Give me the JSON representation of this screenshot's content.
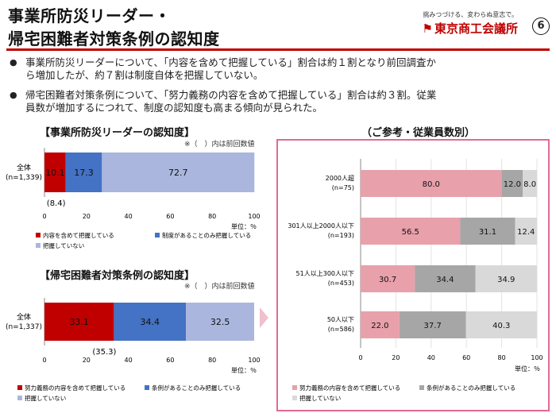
{
  "header": {
    "title_line1": "事業所防災リーダー・",
    "title_line2": "帰宅困難者対策条例の認知度",
    "slogan": "挑みつづける、変わらぬ意志で。",
    "logo_text": "東京商工会議所",
    "page_number": "⑥"
  },
  "bullets": [
    {
      "line1": "事業所防災リーダーについて、「内容を含めて把握している」割合は約１割となり前回調査か",
      "line2": "ら増加したが、約７割は制度自体を把握していない。"
    },
    {
      "line1": "帰宅困難者対策条例について、「努力義務の内容を含めて把握している」割合は約３割。従業",
      "line2": "員数が増加するにつれて、制度の認知度も高まる傾向が見られた。"
    }
  ],
  "colors": {
    "red": "#c00000",
    "blue": "#4472c4",
    "lightblue": "#aab6de",
    "pink": "#e8a0ab",
    "gray": "#a6a6a6",
    "lightgray": "#d9d9d9",
    "panel_border": "#e26b8f"
  },
  "chart_data": [
    {
      "type": "bar",
      "orientation": "horizontal",
      "stacked": true,
      "title": "【事業所防災リーダーの認知度】",
      "note": "※（　）内は前回数値",
      "categories": [
        "全体\n(n=1,339)"
      ],
      "series": [
        {
          "name": "内容を含めて把握している",
          "values": [
            10.1
          ],
          "previous": "(8.4)"
        },
        {
          "name": "制度があることのみ把握している",
          "values": [
            17.3
          ]
        },
        {
          "name": "把握していない",
          "values": [
            72.7
          ]
        }
      ],
      "xlim": [
        0,
        100
      ],
      "xticks": [
        "0",
        "20",
        "40",
        "60",
        "80",
        "100"
      ],
      "unit": "単位：％"
    },
    {
      "type": "bar",
      "orientation": "horizontal",
      "stacked": true,
      "title": "【帰宅困難者対策条例の認知度】",
      "note": "※（　）内は前回数値",
      "categories": [
        "全体\n(n=1,337)"
      ],
      "series": [
        {
          "name": "努力義務の内容を含めて把握している",
          "values": [
            33.1
          ],
          "previous": "(35.3)"
        },
        {
          "name": "条例があることのみ把握している",
          "values": [
            34.4
          ]
        },
        {
          "name": "把握していない",
          "values": [
            32.5
          ]
        }
      ],
      "xlim": [
        0,
        100
      ],
      "xticks": [
        "0",
        "20",
        "40",
        "60",
        "80",
        "100"
      ],
      "unit": "単位：％"
    },
    {
      "type": "bar",
      "orientation": "horizontal",
      "stacked": true,
      "title": "（ご参考・従業員数別）",
      "categories": [
        "2000人超\n(n=75)",
        "301人以上2000人以下\n(n=193)",
        "51人以上300人以下\n(n=453)",
        "50人以下\n(n=586)"
      ],
      "series": [
        {
          "name": "努力義務の内容を含めて把握している",
          "values": [
            80.0,
            56.5,
            30.7,
            22.0
          ]
        },
        {
          "name": "条例があることのみ把握している",
          "values": [
            12.0,
            31.1,
            34.4,
            37.7
          ]
        },
        {
          "name": "把握していない",
          "values": [
            8.0,
            12.4,
            34.9,
            40.3
          ]
        }
      ],
      "value_labels": [
        [
          "80.0",
          "12.0",
          "8.0"
        ],
        [
          "56.5",
          "31.1",
          "12.4"
        ],
        [
          "30.7",
          "34.4",
          "34.9"
        ],
        [
          "22.0",
          "37.7",
          "40.3"
        ]
      ],
      "xlim": [
        0,
        100
      ],
      "xticks": [
        "0",
        "20",
        "40",
        "60",
        "80",
        "100"
      ],
      "unit": "単位：％"
    }
  ]
}
